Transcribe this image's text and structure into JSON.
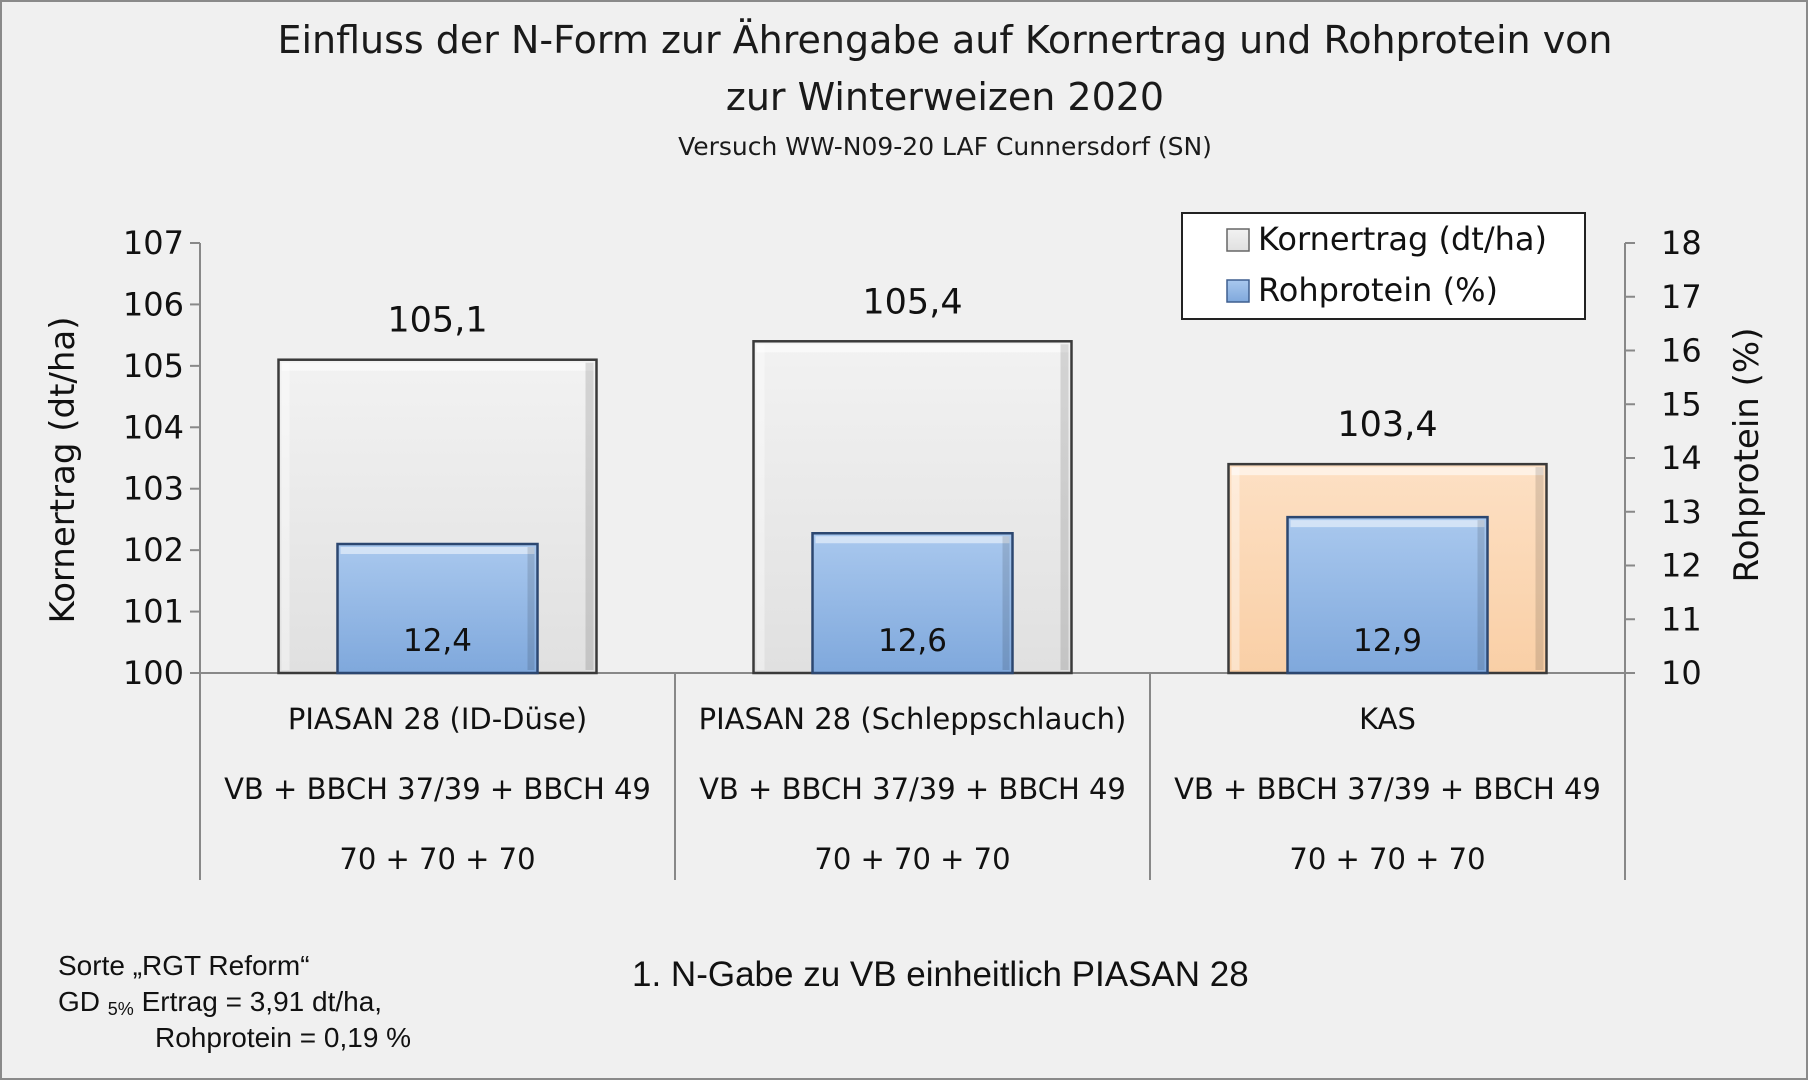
{
  "chart_data": {
    "type": "bar",
    "title_line1": "Einfluss der N-Form zur Ährengabe auf Kornertrag und Rohprotein von",
    "title_line2": "zur Winterweizen 2020",
    "subtitle": "Versuch WW-N09-20 LAF Cunnersdorf (SN)",
    "ylabel_left": "Kornertrag (dt/ha)",
    "ylabel_right": "Rohprotein (%)",
    "ylim_left": [
      100,
      107
    ],
    "ylim_right": [
      10,
      18
    ],
    "yticks_left": [
      "100",
      "101",
      "102",
      "103",
      "104",
      "105",
      "106",
      "107"
    ],
    "yticks_right": [
      "10",
      "11",
      "12",
      "13",
      "14",
      "15",
      "16",
      "17",
      "18"
    ],
    "legend_position": "top-right",
    "categories": [
      {
        "name": "PIASAN 28 (ID-Düse)",
        "line2": "VB + BBCH 37/39 + BBCH 49",
        "line3": "70 + 70 + 70"
      },
      {
        "name": "PIASAN 28 (Schleppschlauch)",
        "line2": "VB + BBCH 37/39 + BBCH 49",
        "line3": "70 + 70 + 70"
      },
      {
        "name": "KAS",
        "line2": "VB + BBCH 37/39 + BBCH 49",
        "line3": "70 + 70 + 70"
      }
    ],
    "series": [
      {
        "name": "Kornertrag (dt/ha)",
        "axis": "left",
        "values": [
          105.1,
          105.4,
          103.4
        ],
        "labels": [
          "105,1",
          "105,4",
          "103,4"
        ],
        "colors": [
          "#e4e4e4",
          "#e4e4e4",
          "#fbd6b4"
        ]
      },
      {
        "name": "Rohprotein (%)",
        "axis": "right",
        "values": [
          12.4,
          12.6,
          12.9
        ],
        "labels": [
          "12,4",
          "12,6",
          "12,9"
        ],
        "colors": [
          "#8db4e2",
          "#8db4e2",
          "#8db4e2"
        ]
      }
    ]
  },
  "notes": {
    "sorte": "Sorte „RGT Reform“",
    "gd_prefix": "GD",
    "gd_sub": "5%",
    "gd_ertrag": "Ertrag = 3,91 dt/ha,",
    "gd_protein": "Rohprotein  = 0,19 %",
    "footnote": "1. N-Gabe zu VB einheitlich PIASAN 28"
  }
}
